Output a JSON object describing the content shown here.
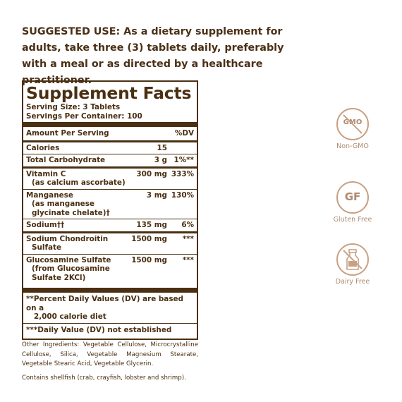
{
  "suggested_use": {
    "label": "SUGGESTED USE:",
    "text": " As a dietary supplement for adults, take three (3) tablets daily, preferably with a meal or as directed by a healthcare practitioner."
  },
  "facts": {
    "title": "Supplement Facts",
    "serving_size": "Serving Size: 3 Tablets",
    "servings_per_container": "Servings Per Container: 100",
    "header_amount": "Amount Per Serving",
    "header_dv": "%DV",
    "rows": [
      {
        "name": "Calories",
        "sub": "",
        "amount": "15",
        "dv": ""
      },
      {
        "name": "Total Carbohydrate",
        "sub": "",
        "amount": "3 g",
        "dv": "1%**"
      },
      {
        "name": "Vitamin C",
        "sub": "(as calcium ascorbate)",
        "amount": "300 mg",
        "dv": "333%"
      },
      {
        "name": "Manganese",
        "sub": "(as manganese glycinate chelate)†",
        "amount": "3 mg",
        "dv": "130%"
      },
      {
        "name": "Sodium††",
        "sub": "",
        "amount": "135 mg",
        "dv": "6%"
      },
      {
        "name": "Sodium Chondroitin",
        "sub": "Sulfate",
        "amount": "1500 mg",
        "dv": "***"
      },
      {
        "name": "Glucosamine Sulfate",
        "sub": "(from Glucosamine Sulfate 2KCl)",
        "amount": "1500 mg",
        "dv": "***"
      }
    ],
    "note1_a": "**Percent Daily Values (DV) are based on a",
    "note1_b": "2,000 calorie diet",
    "note2": "***Daily Value (DV) not established"
  },
  "other": {
    "ingredients": "Other Ingredients: Vegetable Cellulose, Microcrystalline Cellulose, Silica, Vegetable Magnesium Stearate, Vegetable Stearic Acid, Vegetable Glycerin.",
    "allergen": "Contains shellfish (crab, crayfish, lobster and shrimp)."
  },
  "badges": [
    {
      "icon": "gmo-crossed-icon",
      "inner": "GMO",
      "caption": "Non-GMO"
    },
    {
      "icon": "gf-icon",
      "inner": "GF",
      "caption": "Gluten Free"
    },
    {
      "icon": "milk-bottle-crossed-icon",
      "inner": "",
      "caption": "Dairy Free"
    }
  ],
  "colors": {
    "text": "#4a2f12",
    "badge": "#c8a184"
  }
}
